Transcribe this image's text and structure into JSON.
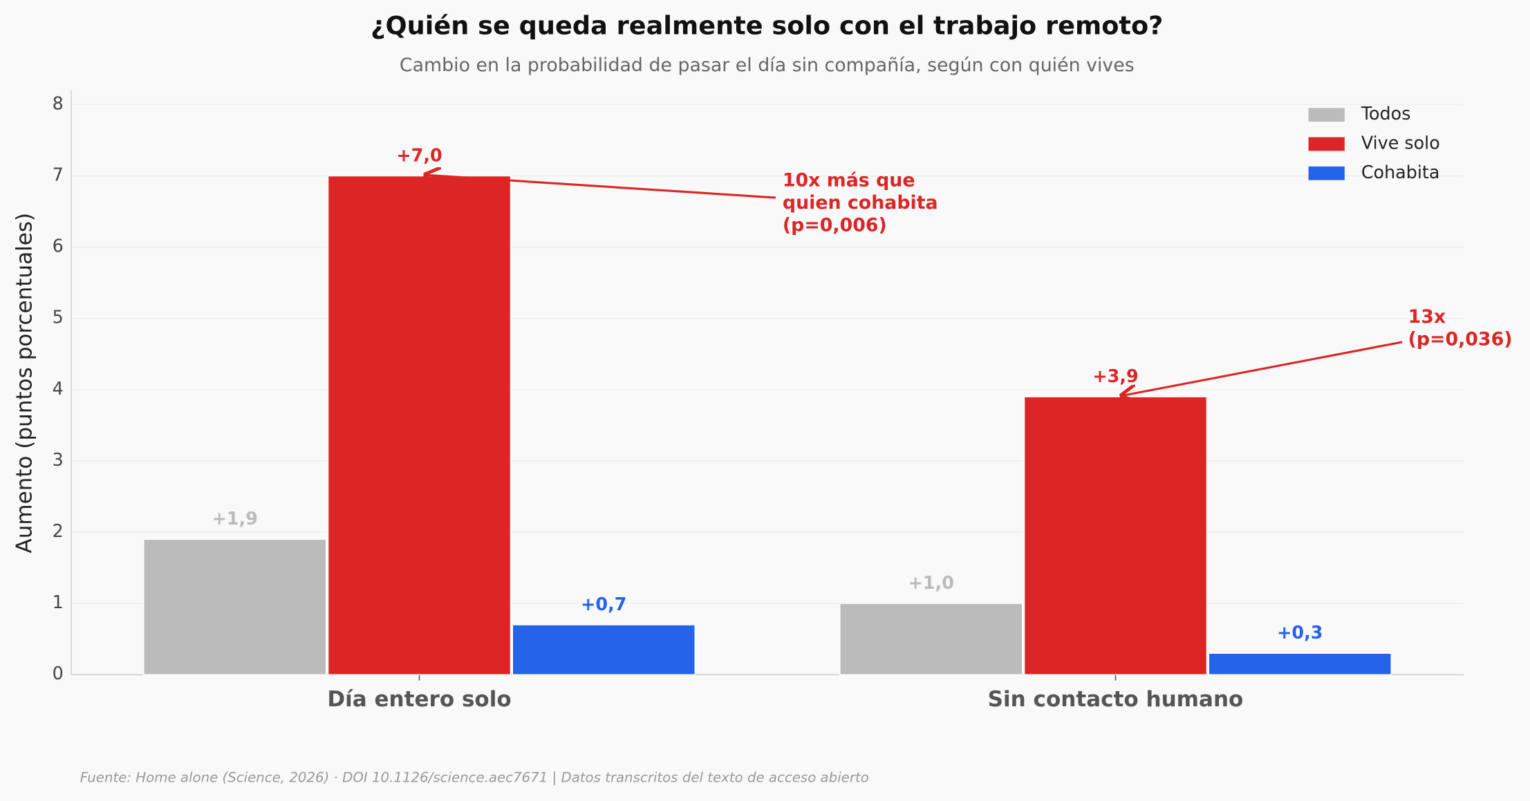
{
  "chart_data": {
    "type": "bar",
    "title": "¿Quién se queda realmente solo con el trabajo remoto?",
    "subtitle": "Cambio en la probabilidad de pasar el día sin compañía, según con quién vives",
    "ylabel": "Aumento (puntos porcentuales)",
    "categories": [
      "Día entero solo",
      "Sin contacto humano"
    ],
    "series": [
      {
        "name": "Todos",
        "color": "#bbbbbb",
        "values": [
          1.9,
          1.0
        ],
        "value_labels": [
          "+1,9",
          "+1,0"
        ]
      },
      {
        "name": "Vive solo",
        "color": "#dc2626",
        "values": [
          7.0,
          3.9
        ],
        "value_labels": [
          "+7,0",
          "+3,9"
        ]
      },
      {
        "name": "Cohabita",
        "color": "#2563eb",
        "values": [
          0.7,
          0.3
        ],
        "value_labels": [
          "+0,7",
          "+0,3"
        ]
      }
    ],
    "ylim": [
      0,
      8.2
    ],
    "yticks": [
      0,
      1,
      2,
      3,
      4,
      5,
      6,
      7,
      8
    ],
    "grid": true,
    "legend": "upper right",
    "annotations": [
      {
        "text": [
          "10x más que",
          "quien cohabita",
          "(p=0,006)"
        ],
        "color": "#dc2626"
      },
      {
        "text": [
          "13x",
          "(p=0,036)"
        ],
        "color": "#dc2626"
      }
    ],
    "source": "Fuente: Home alone (Science, 2026) · DOI 10.1126/science.aec7671 | Datos transcritos del texto de acceso abierto"
  }
}
